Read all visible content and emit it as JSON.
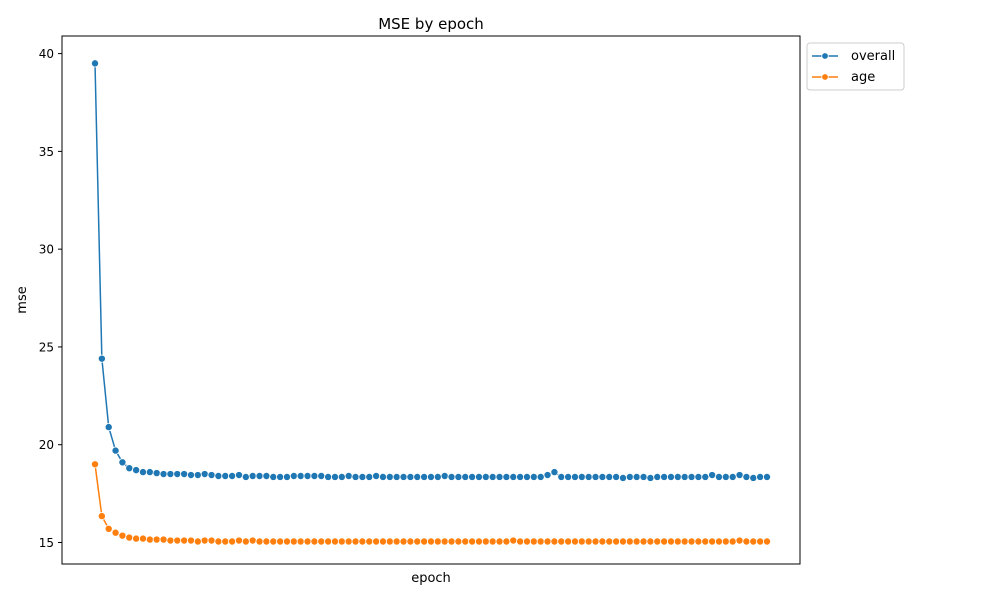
{
  "chart_data": {
    "type": "line",
    "title": "MSE by epoch",
    "xlabel": "epoch",
    "ylabel": "mse",
    "ylim": [
      13.9,
      40.9
    ],
    "yticks": [
      15,
      20,
      25,
      30,
      35,
      40
    ],
    "xticks_visible": false,
    "grid": false,
    "legend_position": "outside-top-right",
    "series": [
      {
        "name": "overall",
        "color": "#1f77b4",
        "values": [
          39.5,
          24.4,
          20.9,
          19.7,
          19.1,
          18.8,
          18.7,
          18.6,
          18.6,
          18.55,
          18.5,
          18.5,
          18.5,
          18.5,
          18.45,
          18.45,
          18.5,
          18.45,
          18.4,
          18.4,
          18.4,
          18.45,
          18.35,
          18.4,
          18.4,
          18.4,
          18.35,
          18.35,
          18.35,
          18.4,
          18.4,
          18.4,
          18.4,
          18.4,
          18.35,
          18.35,
          18.35,
          18.4,
          18.35,
          18.35,
          18.35,
          18.4,
          18.35,
          18.35,
          18.35,
          18.35,
          18.35,
          18.35,
          18.35,
          18.35,
          18.35,
          18.4,
          18.35,
          18.35,
          18.35,
          18.35,
          18.35,
          18.35,
          18.35,
          18.35,
          18.35,
          18.35,
          18.35,
          18.35,
          18.35,
          18.35,
          18.45,
          18.6,
          18.35,
          18.35,
          18.35,
          18.35,
          18.35,
          18.35,
          18.35,
          18.35,
          18.35,
          18.3,
          18.35,
          18.35,
          18.35,
          18.3,
          18.35,
          18.35,
          18.35,
          18.35,
          18.35,
          18.35,
          18.35,
          18.35,
          18.45,
          18.35,
          18.35,
          18.35,
          18.45,
          18.35,
          18.3,
          18.35,
          18.35
        ]
      },
      {
        "name": "age",
        "color": "#ff7f0e",
        "values": [
          19.0,
          16.35,
          15.7,
          15.5,
          15.35,
          15.25,
          15.2,
          15.2,
          15.15,
          15.15,
          15.15,
          15.1,
          15.1,
          15.1,
          15.1,
          15.05,
          15.1,
          15.1,
          15.05,
          15.05,
          15.05,
          15.1,
          15.05,
          15.1,
          15.05,
          15.05,
          15.05,
          15.05,
          15.05,
          15.05,
          15.05,
          15.05,
          15.05,
          15.05,
          15.05,
          15.05,
          15.05,
          15.05,
          15.05,
          15.05,
          15.05,
          15.05,
          15.05,
          15.05,
          15.05,
          15.05,
          15.05,
          15.05,
          15.05,
          15.05,
          15.05,
          15.05,
          15.05,
          15.05,
          15.05,
          15.05,
          15.05,
          15.05,
          15.05,
          15.05,
          15.05,
          15.1,
          15.05,
          15.05,
          15.05,
          15.05,
          15.05,
          15.05,
          15.05,
          15.05,
          15.05,
          15.05,
          15.05,
          15.05,
          15.05,
          15.05,
          15.05,
          15.05,
          15.05,
          15.05,
          15.05,
          15.05,
          15.05,
          15.05,
          15.05,
          15.05,
          15.05,
          15.05,
          15.05,
          15.05,
          15.05,
          15.05,
          15.05,
          15.05,
          15.1,
          15.05,
          15.05,
          15.05,
          15.05
        ]
      }
    ]
  }
}
